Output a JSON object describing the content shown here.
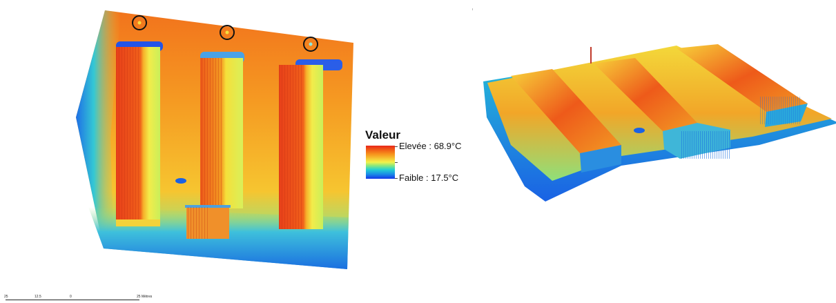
{
  "legend": {
    "title": "Valeur",
    "high_label": "Elevée : 68.9°C",
    "low_label": "Faible : 17.5°C",
    "high_color": "#e8271a",
    "low_color": "#1437e8"
  },
  "scale_bar": {
    "labels": [
      "25",
      "12.5",
      "0",
      "25 Mètres"
    ]
  },
  "hotspot_markers": {
    "count": 3,
    "shape": "black-circle"
  },
  "palette": {
    "red": "#e8271a",
    "orange": "#f7941d",
    "yellow": "#f2f24b",
    "cyan": "#26d2d0",
    "blue": "#1437e8"
  }
}
